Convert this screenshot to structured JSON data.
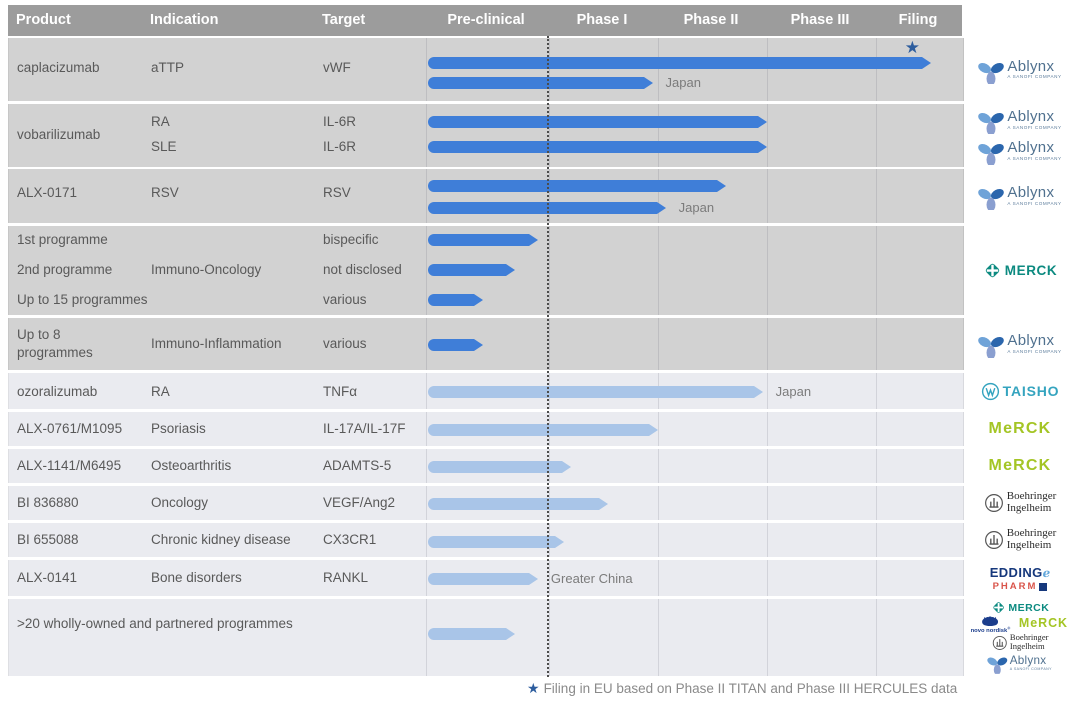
{
  "header": {
    "columns": [
      "Product",
      "Indication",
      "Target"
    ],
    "phases": [
      "Pre-clinical",
      "Phase I",
      "Phase II",
      "Phase III",
      "Filing"
    ]
  },
  "footnote": {
    "star": "★",
    "text": "Filing in EU based on Phase II TITAN and Phase III HERCULES data"
  },
  "colors": {
    "header_bg": "#9c9c9c",
    "owned_row_bg": "#d2d2d2",
    "partner_row_bg": "#eaebf0",
    "owned_bar": "#3f7ed8",
    "partner_bar": "#a9c5e8",
    "star": "#2d5d9e"
  },
  "chart_data": {
    "type": "gantt",
    "phases": [
      "Pre-clinical",
      "Phase I",
      "Phase II",
      "Phase III",
      "Filing"
    ],
    "units_note": "bar 'end' is in phase units: 0 = start of Pre-clinical, 1 = Pre-clinical/Phase I boundary, 5 = end of Filing",
    "rows": [
      {
        "product": [
          "caplacizumab"
        ],
        "indication": [
          "aTTP"
        ],
        "target": [
          "vWF"
        ],
        "group": "owned",
        "bars": [
          {
            "end": 4.63,
            "star": true
          },
          {
            "end": 1.95,
            "label": "Japan"
          }
        ],
        "logos": [
          [
            "ablynx"
          ]
        ]
      },
      {
        "product": [
          "vobarilizumab"
        ],
        "indication": [
          "RA",
          "SLE"
        ],
        "target": [
          "IL-6R",
          "IL-6R"
        ],
        "group": "owned",
        "bars": [
          {
            "end": 3.0
          },
          {
            "end": 3.0
          }
        ],
        "logos": [
          [
            "ablynx"
          ],
          [
            "ablynx"
          ]
        ]
      },
      {
        "product": [
          "ALX-0171"
        ],
        "indication": [
          "RSV"
        ],
        "target": [
          "RSV"
        ],
        "group": "owned",
        "bars": [
          {
            "end": 2.62
          },
          {
            "end": 2.07,
            "label": "Japan"
          }
        ],
        "logos": [
          [
            "ablynx"
          ]
        ]
      },
      {
        "product": [
          "1st programme",
          "2nd programme",
          "Up to 15 programmes"
        ],
        "indication": [
          "Immuno-Oncology"
        ],
        "target": [
          "bispecific",
          "not disclosed",
          "various"
        ],
        "group": "owned",
        "bars": [
          {
            "end": 0.91
          },
          {
            "end": 0.72
          },
          {
            "end": 0.46
          }
        ],
        "logos": [
          [
            "merck_teal"
          ]
        ]
      },
      {
        "product": [
          "Up to 8",
          "programmes"
        ],
        "indication": [
          "Immuno-Inflammation"
        ],
        "target": [
          "various"
        ],
        "group": "owned",
        "bars": [
          {
            "end": 0.46
          }
        ],
        "logos": [
          [
            "ablynx"
          ]
        ]
      },
      {
        "product": [
          "ozoralizumab"
        ],
        "indication": [
          "RA"
        ],
        "target": [
          "TNFα"
        ],
        "group": "partner",
        "bars": [
          {
            "end": 2.96,
            "label": "Japan"
          }
        ],
        "logos": [
          [
            "taisho"
          ]
        ]
      },
      {
        "product": [
          "ALX-0761/M1095"
        ],
        "indication": [
          "Psoriasis"
        ],
        "target": [
          "IL-17A/IL-17F"
        ],
        "group": "partner",
        "bars": [
          {
            "end": 2.0
          }
        ],
        "logos": [
          [
            "merck_green"
          ]
        ]
      },
      {
        "product": [
          "ALX-1141/M6495"
        ],
        "indication": [
          "Osteoarthritis"
        ],
        "target": [
          "ADAMTS-5"
        ],
        "group": "partner",
        "bars": [
          {
            "end": 1.2
          }
        ],
        "logos": [
          [
            "merck_green"
          ]
        ]
      },
      {
        "product": [
          "BI 836880"
        ],
        "indication": [
          "Oncology"
        ],
        "target": [
          "VEGF/Ang2"
        ],
        "group": "partner",
        "bars": [
          {
            "end": 1.54
          }
        ],
        "logos": [
          [
            "boehringer"
          ]
        ]
      },
      {
        "product": [
          "BI 655088"
        ],
        "indication": [
          "Chronic kidney disease"
        ],
        "target": [
          "CX3CR1"
        ],
        "group": "partner",
        "bars": [
          {
            "end": 1.14
          }
        ],
        "logos": [
          [
            "boehringer"
          ]
        ]
      },
      {
        "product": [
          "ALX-0141"
        ],
        "indication": [
          "Bone disorders"
        ],
        "target": [
          "RANKL"
        ],
        "group": "partner",
        "bars": [
          {
            "end": 0.91,
            "label": "Greater China"
          }
        ],
        "logos": [
          [
            "eddingpharm"
          ]
        ]
      },
      {
        "product": [
          ">20 wholly-owned and partnered programmes"
        ],
        "indication": [],
        "target": [],
        "group": "partner",
        "bars": [
          {
            "end": 0.72
          }
        ],
        "logos": [
          [
            "merck_teal"
          ],
          [
            "novo_nordisk",
            "merck_green"
          ],
          [
            "boehringer"
          ],
          [
            "ablynx"
          ]
        ]
      }
    ]
  },
  "logos": {
    "ablynx": {
      "name": "Ablynx",
      "sub": "A SANOFI COMPANY"
    },
    "merck_teal": {
      "name": "MERCK"
    },
    "merck_green": {
      "name": "MeRCK"
    },
    "taisho": {
      "name": "TAISHO"
    },
    "boehringer": {
      "line1": "Boehringer",
      "line2": "Ingelheim"
    },
    "eddingpharm": {
      "line1": "EDDING",
      "line2": "PHARM"
    },
    "novo_nordisk": {
      "name": "novo nordisk"
    }
  }
}
